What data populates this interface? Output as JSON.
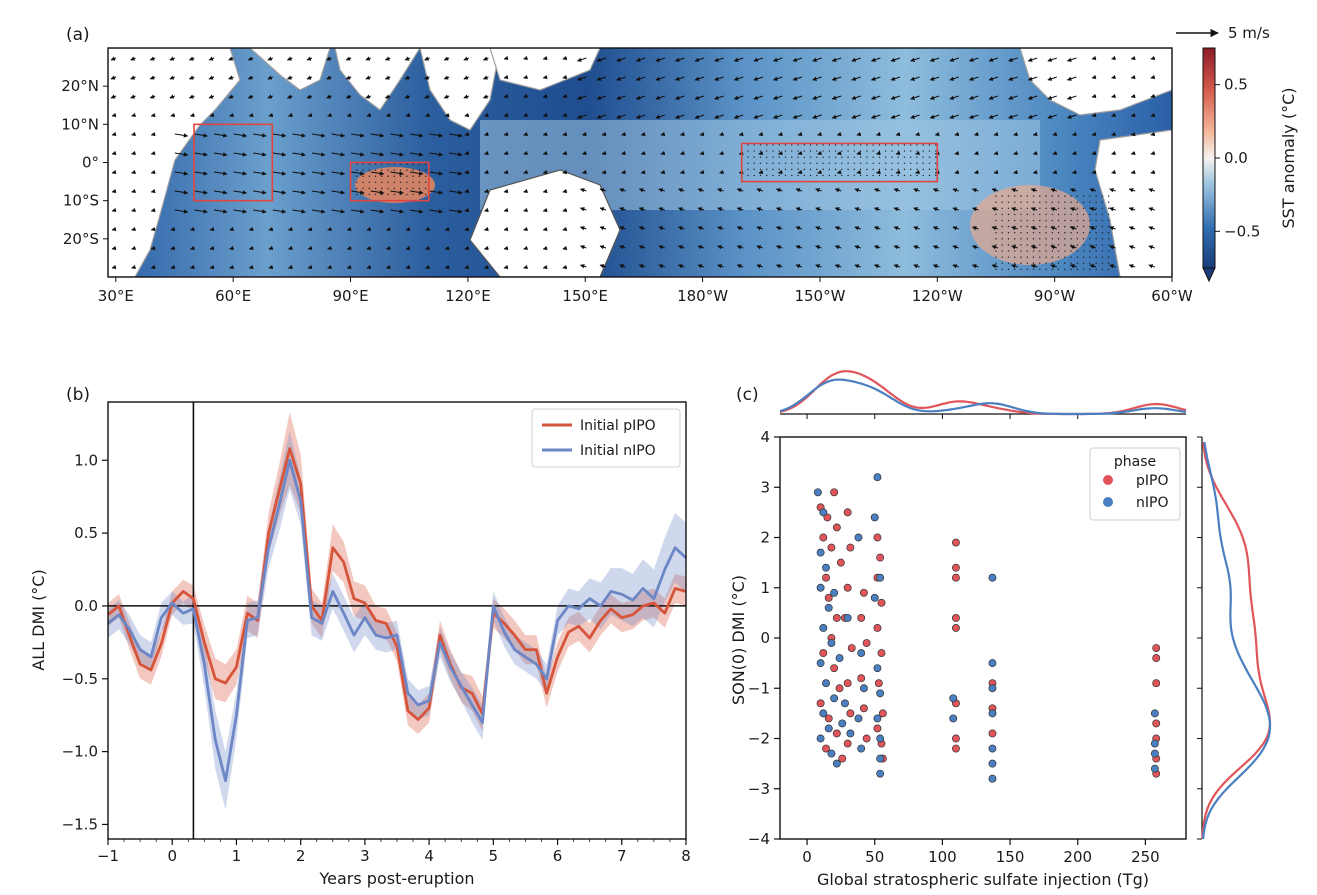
{
  "panel_a": {
    "label": "(a)",
    "scale_arrow_label": "5 m/s",
    "colorbar_label": "SST anomaly (°C)",
    "colorbar_ticks": [
      {
        "v": 0.5,
        "label": "0.5"
      },
      {
        "v": 0.0,
        "label": "0.0"
      },
      {
        "v": -0.5,
        "label": "−0.5"
      }
    ],
    "colorbar_range": [
      -0.75,
      0.75
    ],
    "lon_ticks": [
      {
        "lon": 30,
        "label": "30°E"
      },
      {
        "lon": 60,
        "label": "60°E"
      },
      {
        "lon": 90,
        "label": "90°E"
      },
      {
        "lon": 120,
        "label": "120°E"
      },
      {
        "lon": 150,
        "label": "150°E"
      },
      {
        "lon": 180,
        "label": "180°W"
      },
      {
        "lon": 210,
        "label": "150°W"
      },
      {
        "lon": 240,
        "label": "120°W"
      },
      {
        "lon": 270,
        "label": "90°W"
      },
      {
        "lon": 300,
        "label": "60°W"
      }
    ],
    "lat_ticks": [
      {
        "lat": 20,
        "label": "20°N"
      },
      {
        "lat": 10,
        "label": "10°N"
      },
      {
        "lat": 0,
        "label": "0°"
      },
      {
        "lat": -10,
        "label": "10°S"
      },
      {
        "lat": -20,
        "label": "20°S"
      }
    ],
    "lon_range": [
      28,
      300
    ],
    "lat_range": [
      -30,
      30
    ],
    "boxes": [
      {
        "name": "western-iod-box",
        "lon": [
          50,
          70
        ],
        "lat": [
          -10,
          10
        ]
      },
      {
        "name": "eastern-iod-box",
        "lon": [
          90,
          110
        ],
        "lat": [
          -10,
          0
        ]
      },
      {
        "name": "nino34-box",
        "lon": [
          190,
          240
        ],
        "lat": [
          -5,
          5
        ]
      }
    ],
    "colors": {
      "box": "#e0463f",
      "land": "#ffffff",
      "coast": "#9e9e9e"
    }
  },
  "chart_data": [
    {
      "type": "line",
      "panel": "(b)",
      "xlabel": "Years post-eruption",
      "ylabel": "ALL DMI (°C)",
      "xlim": [
        -1,
        8
      ],
      "ylim": [
        -1.6,
        1.4
      ],
      "xticks": [
        -1,
        0,
        1,
        2,
        3,
        4,
        5,
        6,
        7,
        8
      ],
      "xtick_labels": [
        "−1",
        "0",
        "1",
        "2",
        "3",
        "4",
        "5",
        "6",
        "7",
        "8"
      ],
      "yticks": [
        -1.5,
        -1.0,
        -0.5,
        0.0,
        0.5,
        1.0
      ],
      "ytick_labels": [
        "−1.5",
        "−1.0",
        "−0.5",
        "0.0",
        "0.5",
        "1.0"
      ],
      "eruption_line_x": 0.33,
      "legend_position": "top-right",
      "x": [
        -1.0,
        -0.83,
        -0.67,
        -0.5,
        -0.33,
        -0.17,
        0.0,
        0.17,
        0.33,
        0.5,
        0.67,
        0.83,
        1.0,
        1.17,
        1.33,
        1.5,
        1.67,
        1.83,
        2.0,
        2.17,
        2.33,
        2.5,
        2.67,
        2.83,
        3.0,
        3.17,
        3.33,
        3.5,
        3.67,
        3.83,
        4.0,
        4.17,
        4.33,
        4.5,
        4.67,
        4.83,
        5.0,
        5.17,
        5.33,
        5.5,
        5.67,
        5.83,
        6.0,
        6.17,
        6.33,
        6.5,
        6.67,
        6.83,
        7.0,
        7.17,
        7.33,
        7.5,
        7.67,
        7.83,
        8.0
      ],
      "series": [
        {
          "name": "Initial pIPO",
          "color": "#d6553a",
          "values": [
            -0.06,
            0.0,
            -0.2,
            -0.4,
            -0.44,
            -0.26,
            0.02,
            0.1,
            0.05,
            -0.25,
            -0.5,
            -0.53,
            -0.42,
            -0.05,
            -0.1,
            0.5,
            0.8,
            1.08,
            0.84,
            0.0,
            -0.1,
            0.4,
            0.3,
            0.05,
            0.02,
            -0.1,
            -0.12,
            -0.28,
            -0.72,
            -0.78,
            -0.7,
            -0.2,
            -0.4,
            -0.56,
            -0.6,
            -0.74,
            -0.05,
            -0.12,
            -0.2,
            -0.3,
            -0.3,
            -0.6,
            -0.35,
            -0.18,
            -0.14,
            -0.22,
            -0.1,
            -0.02,
            -0.08,
            -0.06,
            0.0,
            0.02,
            -0.05,
            0.12,
            0.1
          ],
          "band": [
            0.08,
            0.08,
            0.09,
            0.1,
            0.1,
            0.09,
            0.08,
            0.08,
            0.09,
            0.12,
            0.14,
            0.13,
            0.12,
            0.12,
            0.12,
            0.14,
            0.18,
            0.25,
            0.2,
            0.12,
            0.12,
            0.16,
            0.14,
            0.12,
            0.12,
            0.1,
            0.1,
            0.1,
            0.1,
            0.1,
            0.1,
            0.1,
            0.1,
            0.1,
            0.12,
            0.12,
            0.1,
            0.1,
            0.1,
            0.1,
            0.1,
            0.1,
            0.1,
            0.1,
            0.1,
            0.1,
            0.1,
            0.1,
            0.1,
            0.1,
            0.1,
            0.1,
            0.1,
            0.1,
            0.1
          ]
        },
        {
          "name": "Initial nIPO",
          "color": "#6c86c6",
          "values": [
            -0.12,
            -0.06,
            -0.16,
            -0.3,
            -0.35,
            -0.08,
            0.02,
            -0.05,
            -0.02,
            -0.4,
            -0.92,
            -1.2,
            -0.75,
            -0.1,
            -0.08,
            0.4,
            0.7,
            1.0,
            0.72,
            -0.08,
            -0.12,
            0.1,
            -0.05,
            -0.2,
            -0.08,
            -0.2,
            -0.22,
            -0.2,
            -0.6,
            -0.68,
            -0.65,
            -0.25,
            -0.42,
            -0.55,
            -0.68,
            -0.8,
            0.0,
            -0.18,
            -0.3,
            -0.35,
            -0.4,
            -0.5,
            -0.1,
            0.0,
            -0.02,
            0.05,
            0.0,
            0.1,
            0.08,
            0.04,
            0.12,
            0.05,
            0.25,
            0.4,
            0.33
          ],
          "band": [
            0.1,
            0.1,
            0.1,
            0.1,
            0.1,
            0.1,
            0.08,
            0.08,
            0.1,
            0.16,
            0.2,
            0.2,
            0.16,
            0.12,
            0.12,
            0.14,
            0.18,
            0.2,
            0.16,
            0.12,
            0.12,
            0.12,
            0.12,
            0.12,
            0.12,
            0.1,
            0.1,
            0.1,
            0.1,
            0.1,
            0.1,
            0.1,
            0.1,
            0.1,
            0.12,
            0.12,
            0.1,
            0.1,
            0.1,
            0.1,
            0.1,
            0.1,
            0.1,
            0.12,
            0.12,
            0.14,
            0.16,
            0.16,
            0.18,
            0.18,
            0.2,
            0.2,
            0.22,
            0.24,
            0.24
          ]
        }
      ]
    },
    {
      "type": "scatter",
      "panel": "(c)",
      "xlabel": "Global stratospheric sulfate injection (Tg)",
      "ylabel": "SON(0) DMI (°C)",
      "xlim": [
        -20,
        280
      ],
      "ylim": [
        -4,
        4
      ],
      "xticks": [
        0,
        50,
        100,
        150,
        200,
        250
      ],
      "xtick_labels": [
        "0",
        "50",
        "100",
        "150",
        "200",
        "250"
      ],
      "yticks": [
        -4,
        -3,
        -2,
        -1,
        0,
        1,
        2,
        3,
        4
      ],
      "ytick_labels": [
        "−4",
        "−3",
        "−2",
        "−1",
        "0",
        "1",
        "2",
        "3",
        "4"
      ],
      "legend_title": "phase",
      "legend_position": "top-right",
      "marginal_distributions": true,
      "series": [
        {
          "name": "pIPO",
          "color": "#e0555a",
          "points": [
            [
              10,
              2.6
            ],
            [
              12,
              2.0
            ],
            [
              15,
              2.4
            ],
            [
              18,
              1.8
            ],
            [
              20,
              2.9
            ],
            [
              22,
              2.2
            ],
            [
              25,
              1.5
            ],
            [
              14,
              1.2
            ],
            [
              16,
              0.8
            ],
            [
              22,
              0.4
            ],
            [
              18,
              0.0
            ],
            [
              12,
              -0.3
            ],
            [
              20,
              -0.6
            ],
            [
              24,
              -1.0
            ],
            [
              10,
              -1.3
            ],
            [
              16,
              -1.6
            ],
            [
              22,
              -1.9
            ],
            [
              14,
              -2.2
            ],
            [
              26,
              -2.4
            ],
            [
              30,
              2.5
            ],
            [
              32,
              1.8
            ],
            [
              30,
              1.0
            ],
            [
              28,
              0.4
            ],
            [
              33,
              -0.2
            ],
            [
              30,
              -0.9
            ],
            [
              32,
              -1.5
            ],
            [
              30,
              -2.1
            ],
            [
              42,
              0.9
            ],
            [
              40,
              0.4
            ],
            [
              44,
              -0.1
            ],
            [
              40,
              -0.8
            ],
            [
              42,
              -1.4
            ],
            [
              44,
              -2.0
            ],
            [
              52,
              2.0
            ],
            [
              54,
              1.6
            ],
            [
              52,
              1.2
            ],
            [
              55,
              0.7
            ],
            [
              52,
              0.2
            ],
            [
              55,
              -0.3
            ],
            [
              53,
              -0.9
            ],
            [
              56,
              -1.5
            ],
            [
              52,
              -1.8
            ],
            [
              55,
              -2.1
            ],
            [
              56,
              -2.4
            ],
            [
              110,
              1.9
            ],
            [
              110,
              1.4
            ],
            [
              110,
              1.2
            ],
            [
              110,
              0.4
            ],
            [
              110,
              0.2
            ],
            [
              110,
              -1.3
            ],
            [
              110,
              -2.0
            ],
            [
              110,
              -2.2
            ],
            [
              137,
              -0.9
            ],
            [
              137,
              -1.4
            ],
            [
              137,
              -1.9
            ],
            [
              258,
              -0.2
            ],
            [
              258,
              -0.4
            ],
            [
              258,
              -0.9
            ],
            [
              258,
              -1.7
            ],
            [
              258,
              -2.0
            ],
            [
              258,
              -2.4
            ],
            [
              258,
              -2.7
            ]
          ]
        },
        {
          "name": "nIPO",
          "color": "#4a7fc1",
          "points": [
            [
              8,
              2.9
            ],
            [
              12,
              2.5
            ],
            [
              10,
              1.7
            ],
            [
              14,
              1.4
            ],
            [
              10,
              1.0
            ],
            [
              16,
              0.6
            ],
            [
              12,
              0.2
            ],
            [
              18,
              -0.1
            ],
            [
              10,
              -0.5
            ],
            [
              14,
              -0.9
            ],
            [
              20,
              -1.2
            ],
            [
              12,
              -1.5
            ],
            [
              16,
              -1.8
            ],
            [
              10,
              -2.0
            ],
            [
              18,
              -2.3
            ],
            [
              22,
              -2.5
            ],
            [
              20,
              0.9
            ],
            [
              24,
              -0.4
            ],
            [
              26,
              -1.7
            ],
            [
              30,
              0.4
            ],
            [
              28,
              -1.3
            ],
            [
              32,
              -1.9
            ],
            [
              38,
              2.0
            ],
            [
              40,
              -0.3
            ],
            [
              42,
              -1.0
            ],
            [
              38,
              -1.6
            ],
            [
              40,
              -2.2
            ],
            [
              52,
              3.2
            ],
            [
              50,
              2.4
            ],
            [
              54,
              1.2
            ],
            [
              50,
              0.8
            ],
            [
              52,
              -0.6
            ],
            [
              54,
              -1.1
            ],
            [
              52,
              -1.6
            ],
            [
              54,
              -2.0
            ],
            [
              54,
              -2.4
            ],
            [
              54,
              -2.7
            ],
            [
              108,
              -1.2
            ],
            [
              108,
              -1.6
            ],
            [
              137,
              1.2
            ],
            [
              137,
              -0.5
            ],
            [
              137,
              -1.0
            ],
            [
              137,
              -1.5
            ],
            [
              137,
              -2.2
            ],
            [
              137,
              -2.5
            ],
            [
              137,
              -2.8
            ],
            [
              257,
              -1.5
            ],
            [
              257,
              -2.1
            ],
            [
              257,
              -2.3
            ],
            [
              257,
              -2.6
            ]
          ]
        }
      ]
    }
  ]
}
